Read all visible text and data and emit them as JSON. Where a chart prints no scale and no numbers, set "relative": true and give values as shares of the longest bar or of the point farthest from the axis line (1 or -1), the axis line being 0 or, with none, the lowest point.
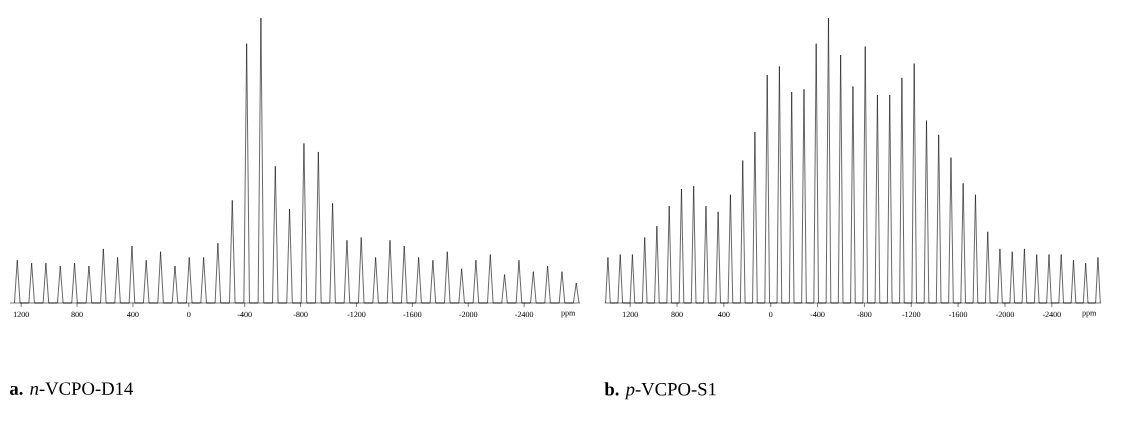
{
  "chart_data": [
    {
      "type": "line",
      "relative": true,
      "title": "**a.** *n*-VCPO-D14",
      "xlabel": "ppm",
      "color": "#000000",
      "xlim": [
        1280,
        -2800
      ],
      "xticks": [
        1200,
        800,
        400,
        0,
        -400,
        -800,
        -1200,
        -1600,
        -2000,
        -2400
      ],
      "x": [
        1248,
        1228,
        1208,
        1145,
        1125,
        1105,
        1043,
        1023,
        1003,
        940,
        920,
        900,
        838,
        818,
        798,
        735,
        715,
        695,
        632,
        612,
        592,
        530,
        510,
        490,
        427,
        407,
        387,
        325,
        305,
        285,
        222,
        202,
        182,
        119,
        99,
        79,
        17,
        -3,
        -23,
        -86,
        -106,
        -126,
        -188,
        -208,
        -228,
        -291,
        -311,
        -331,
        -394,
        -414,
        -434,
        -496,
        -516,
        -536,
        -599,
        -619,
        -639,
        -701,
        -721,
        -741,
        -804,
        -824,
        -844,
        -907,
        -927,
        -947,
        -1009,
        -1029,
        -1049,
        -1112,
        -1132,
        -1152,
        -1214,
        -1234,
        -1254,
        -1317,
        -1337,
        -1357,
        -1420,
        -1440,
        -1460,
        -1522,
        -1542,
        -1562,
        -1625,
        -1645,
        -1665,
        -1727,
        -1747,
        -1767,
        -1830,
        -1850,
        -1870,
        -1933,
        -1953,
        -1973,
        -2035,
        -2055,
        -2075,
        -2138,
        -2158,
        -2178,
        -2240,
        -2260,
        -2280,
        -2343,
        -2363,
        -2383,
        -2446,
        -2466,
        -2486,
        -2548,
        -2568,
        -2588,
        -2651,
        -2671,
        -2691,
        -2753,
        -2773,
        -2793
      ],
      "values": [
        0,
        0.15,
        0,
        0,
        0.14,
        0,
        0,
        0.14,
        0,
        0,
        0.13,
        0,
        0,
        0.14,
        0,
        0,
        0.13,
        0,
        0,
        0.19,
        0,
        0,
        0.16,
        0,
        0,
        0.2,
        0,
        0,
        0.15,
        0,
        0,
        0.18,
        0,
        0,
        0.13,
        0,
        0,
        0.16,
        0,
        0,
        0.16,
        0,
        0,
        0.21,
        0,
        0,
        0.36,
        0,
        0,
        0.91,
        0,
        0,
        1,
        0,
        0,
        0.48,
        0,
        0,
        0.33,
        0,
        0,
        0.56,
        0,
        0,
        0.53,
        0,
        0,
        0.35,
        0,
        0,
        0.22,
        0,
        0,
        0.23,
        0,
        0,
        0.16,
        0,
        0,
        0.22,
        0,
        0,
        0.2,
        0,
        0,
        0.16,
        0,
        0,
        0.15,
        0,
        0,
        0.18,
        0,
        0,
        0.12,
        0,
        0,
        0.15,
        0,
        0,
        0.17,
        0,
        0,
        0.1,
        0,
        0,
        0.15,
        0,
        0,
        0.11,
        0,
        0,
        0.13,
        0,
        0,
        0.11,
        0,
        0,
        0.07,
        0
      ]
    },
    {
      "type": "line",
      "relative": true,
      "title": "**b.** *p*-VCPO-S1",
      "xlabel": "ppm",
      "color": "#000000",
      "xlim": [
        1415,
        -2820
      ],
      "xticks": [
        1200,
        800,
        400,
        0,
        -400,
        -800,
        -1200,
        -1600,
        -2000,
        -2400
      ],
      "x": [
        1410,
        1390,
        1370,
        1305,
        1285,
        1265,
        1201,
        1181,
        1161,
        1096,
        1076,
        1056,
        992,
        972,
        952,
        887,
        867,
        847,
        782,
        762,
        742,
        678,
        658,
        638,
        573,
        553,
        533,
        469,
        449,
        429,
        364,
        344,
        324,
        259,
        239,
        219,
        155,
        135,
        115,
        50,
        30,
        10,
        -54,
        -74,
        -94,
        -159,
        -179,
        -199,
        -264,
        -284,
        -304,
        -368,
        -388,
        -408,
        -473,
        -493,
        -513,
        -577,
        -597,
        -617,
        -682,
        -702,
        -722,
        -787,
        -807,
        -827,
        -891,
        -911,
        -931,
        -996,
        -1016,
        -1036,
        -1100,
        -1120,
        -1140,
        -1205,
        -1225,
        -1245,
        -1310,
        -1330,
        -1350,
        -1414,
        -1434,
        -1454,
        -1519,
        -1539,
        -1559,
        -1623,
        -1643,
        -1663,
        -1728,
        -1748,
        -1768,
        -1833,
        -1853,
        -1873,
        -1937,
        -1957,
        -1977,
        -2042,
        -2062,
        -2082,
        -2146,
        -2166,
        -2186,
        -2251,
        -2271,
        -2291,
        -2356,
        -2376,
        -2396,
        -2460,
        -2480,
        -2500,
        -2565,
        -2585,
        -2605,
        -2669,
        -2689,
        -2709,
        -2774,
        -2794,
        -2814
      ],
      "values": [
        0,
        0.16,
        0,
        0,
        0.17,
        0,
        0,
        0.17,
        0,
        0,
        0.23,
        0,
        0,
        0.27,
        0,
        0,
        0.34,
        0,
        0,
        0.4,
        0,
        0,
        0.41,
        0,
        0,
        0.34,
        0,
        0,
        0.32,
        0,
        0,
        0.38,
        0,
        0,
        0.5,
        0,
        0,
        0.6,
        0,
        0,
        0.8,
        0,
        0,
        0.83,
        0,
        0,
        0.74,
        0,
        0,
        0.75,
        0,
        0,
        0.91,
        0,
        0,
        1,
        0,
        0,
        0.87,
        0,
        0,
        0.76,
        0,
        0,
        0.9,
        0,
        0,
        0.73,
        0,
        0,
        0.73,
        0,
        0,
        0.79,
        0,
        0,
        0.84,
        0,
        0,
        0.64,
        0,
        0,
        0.59,
        0,
        0,
        0.51,
        0,
        0,
        0.42,
        0,
        0,
        0.38,
        0,
        0,
        0.25,
        0,
        0,
        0.19,
        0,
        0,
        0.18,
        0,
        0,
        0.19,
        0,
        0,
        0.17,
        0,
        0,
        0.17,
        0,
        0,
        0.17,
        0,
        0,
        0.15,
        0,
        0,
        0.14,
        0,
        0,
        0.16,
        0
      ]
    }
  ]
}
